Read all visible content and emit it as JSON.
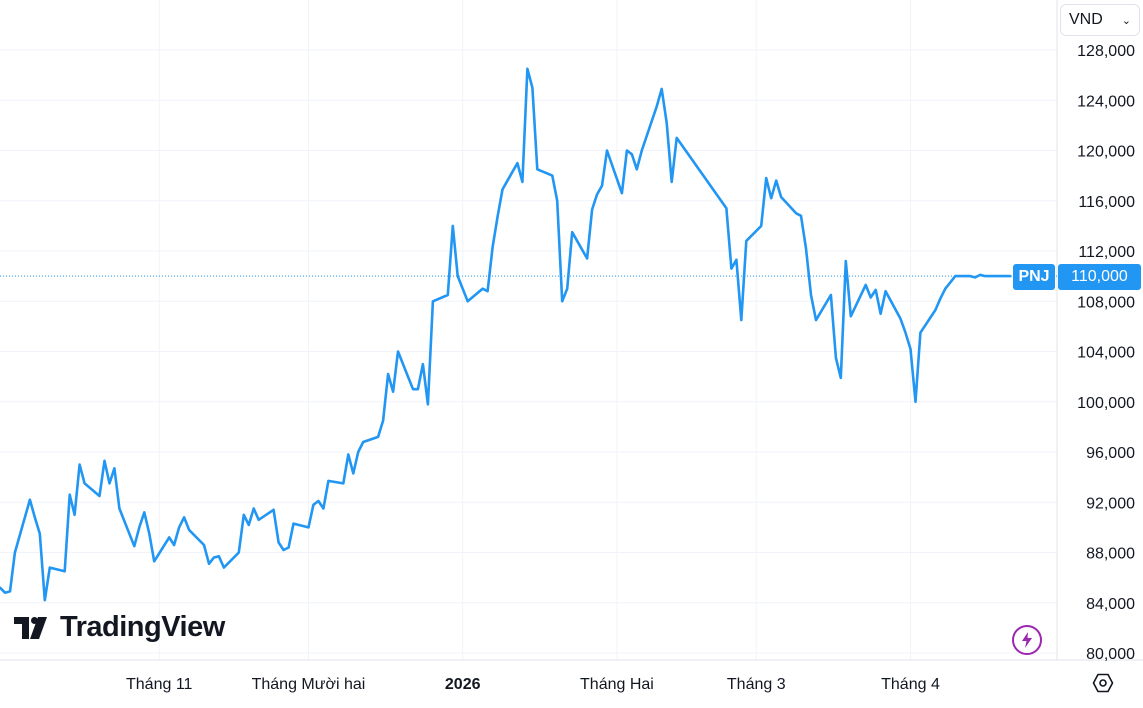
{
  "currency": {
    "value": "VND"
  },
  "logo": {
    "text": "TradingView"
  },
  "colors": {
    "line": "#2196f3",
    "grid": "#f0f3fa",
    "axis_border": "#e0e3eb",
    "flash": "#9c27b0"
  },
  "icons": {
    "flash": "lightning-icon",
    "settings": "gear-icon",
    "dropdown": "chevron-down-icon"
  },
  "chart_data": {
    "type": "line",
    "series": [
      {
        "name": "PNJ",
        "last_value_label": "110,000",
        "x": [
          "2025-09-30",
          "2025-10-01",
          "2025-10-02",
          "2025-10-03",
          "2025-10-06",
          "2025-10-07",
          "2025-10-08",
          "2025-10-09",
          "2025-10-10",
          "2025-10-13",
          "2025-10-14",
          "2025-10-15",
          "2025-10-16",
          "2025-10-17",
          "2025-10-20",
          "2025-10-21",
          "2025-10-22",
          "2025-10-23",
          "2025-10-24",
          "2025-10-27",
          "2025-10-28",
          "2025-10-29",
          "2025-10-30",
          "2025-10-31",
          "2025-11-03",
          "2025-11-04",
          "2025-11-05",
          "2025-11-06",
          "2025-11-07",
          "2025-11-10",
          "2025-11-11",
          "2025-11-12",
          "2025-11-13",
          "2025-11-14",
          "2025-11-17",
          "2025-11-18",
          "2025-11-19",
          "2025-11-20",
          "2025-11-21",
          "2025-11-24",
          "2025-11-25",
          "2025-11-26",
          "2025-11-27",
          "2025-11-28",
          "2025-12-01",
          "2025-12-02",
          "2025-12-03",
          "2025-12-04",
          "2025-12-05",
          "2025-12-08",
          "2025-12-09",
          "2025-12-10",
          "2025-12-11",
          "2025-12-12",
          "2025-12-15",
          "2025-12-16",
          "2025-12-17",
          "2025-12-18",
          "2025-12-19",
          "2025-12-22",
          "2025-12-23",
          "2025-12-24",
          "2025-12-25",
          "2025-12-26",
          "2025-12-29",
          "2025-12-30",
          "2025-12-31",
          "2026-01-02",
          "2026-01-05",
          "2026-01-06",
          "2026-01-07",
          "2026-01-08",
          "2026-01-09",
          "2026-01-12",
          "2026-01-13",
          "2026-01-14",
          "2026-01-15",
          "2026-01-16",
          "2026-01-19",
          "2026-01-20",
          "2026-01-21",
          "2026-01-22",
          "2026-01-23",
          "2026-01-26",
          "2026-01-27",
          "2026-01-28",
          "2026-01-29",
          "2026-01-30",
          "2026-02-02",
          "2026-02-03",
          "2026-02-04",
          "2026-02-05",
          "2026-02-06",
          "2026-02-09",
          "2026-02-10",
          "2026-02-11",
          "2026-02-12",
          "2026-02-13",
          "2026-02-23",
          "2026-02-24",
          "2026-02-25",
          "2026-02-26",
          "2026-02-27",
          "2026-03-02",
          "2026-03-03",
          "2026-03-04",
          "2026-03-05",
          "2026-03-06",
          "2026-03-09",
          "2026-03-10",
          "2026-03-11",
          "2026-03-12",
          "2026-03-13",
          "2026-03-16",
          "2026-03-17",
          "2026-03-18",
          "2026-03-19",
          "2026-03-20",
          "2026-03-23",
          "2026-03-24",
          "2026-03-25",
          "2026-03-26",
          "2026-03-27",
          "2026-03-30",
          "2026-03-31",
          "2026-04-01",
          "2026-04-02",
          "2026-04-03",
          "2026-04-06",
          "2026-04-07",
          "2026-04-08",
          "2026-04-09",
          "2026-04-10",
          "2026-04-13",
          "2026-04-14",
          "2026-04-15",
          "2026-04-16",
          "2026-04-17",
          "2026-04-20",
          "2026-04-21"
        ],
        "values": [
          85200,
          84800,
          84900,
          88000,
          92200,
          90800,
          89500,
          84200,
          86800,
          86500,
          92600,
          91000,
          95000,
          93500,
          92500,
          95300,
          93500,
          94700,
          91500,
          88500,
          90000,
          91200,
          89500,
          87300,
          89200,
          88600,
          90000,
          90800,
          89800,
          88600,
          87100,
          87600,
          87700,
          86800,
          88000,
          91000,
          90200,
          91500,
          90600,
          91400,
          88800,
          88200,
          88400,
          90300,
          90000,
          91800,
          92100,
          91500,
          93700,
          93500,
          95800,
          94300,
          96000,
          96800,
          97200,
          98500,
          102200,
          100800,
          104000,
          101000,
          101000,
          103000,
          99800,
          108000,
          108500,
          114000,
          110000,
          108000,
          109000,
          108800,
          112300,
          114700,
          116900,
          119000,
          117500,
          126500,
          125000,
          118500,
          118000,
          116000,
          108000,
          109000,
          113500,
          111400,
          115300,
          116500,
          117200,
          120000,
          116600,
          120000,
          119700,
          118500,
          120000,
          123500,
          124900,
          122200,
          117500,
          121000,
          115400,
          110600,
          111300,
          106500,
          112800,
          114000,
          117800,
          116200,
          117600,
          116300,
          115000,
          114800,
          112200,
          108500,
          106500,
          108500,
          103500,
          101900,
          111200,
          106800,
          109300,
          108300,
          108900,
          107000,
          108800,
          106600,
          105500,
          104200,
          100000,
          105500,
          107300,
          108200,
          109000,
          109500,
          110000,
          110000,
          109900,
          110100,
          110000,
          110000,
          110000,
          110000
        ]
      }
    ],
    "x_ticks": [
      {
        "label": "Tháng 11",
        "at": "2025-11-01",
        "bold": false
      },
      {
        "label": "Tháng Mười hai",
        "at": "2025-12-01",
        "bold": false
      },
      {
        "label": "2026",
        "at": "2026-01-01",
        "bold": true
      },
      {
        "label": "Tháng Hai",
        "at": "2026-02-01",
        "bold": false
      },
      {
        "label": "Tháng 3",
        "at": "2026-03-01",
        "bold": false
      },
      {
        "label": "Tháng 4",
        "at": "2026-04-01",
        "bold": false
      }
    ],
    "y_ticks": [
      "80,000",
      "84,000",
      "88,000",
      "92,000",
      "96,000",
      "100,000",
      "104,000",
      "108,000",
      "112,000",
      "116,000",
      "120,000",
      "124,000",
      "128,000"
    ],
    "ylim": [
      80000,
      128000
    ],
    "grid": true,
    "last_value": 110000,
    "legend": "none"
  }
}
